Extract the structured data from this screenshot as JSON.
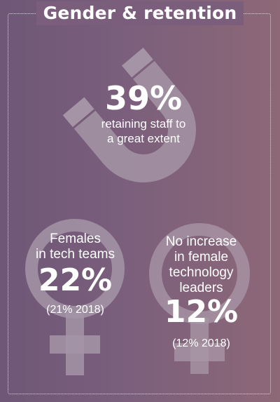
{
  "title": "Gender & retention",
  "retention": {
    "percent": "39%",
    "caption_line1": "retaining staff to",
    "caption_line2": "a great extent",
    "icon": "magnet-icon"
  },
  "females_in_tech": {
    "label_line1": "Females",
    "label_line2": "in tech teams",
    "percent": "22%",
    "previous": "(21% 2018)",
    "icon": "female-symbol-icon"
  },
  "female_leaders": {
    "label_line1": "No increase",
    "label_line2": "in female",
    "label_line3": "technology",
    "label_line4": "leaders",
    "percent": "12%",
    "previous": "(12% 2018)",
    "icon": "female-symbol-icon"
  },
  "colors": {
    "background": "#7b5f7c",
    "icon_fill": "#a797a8"
  }
}
